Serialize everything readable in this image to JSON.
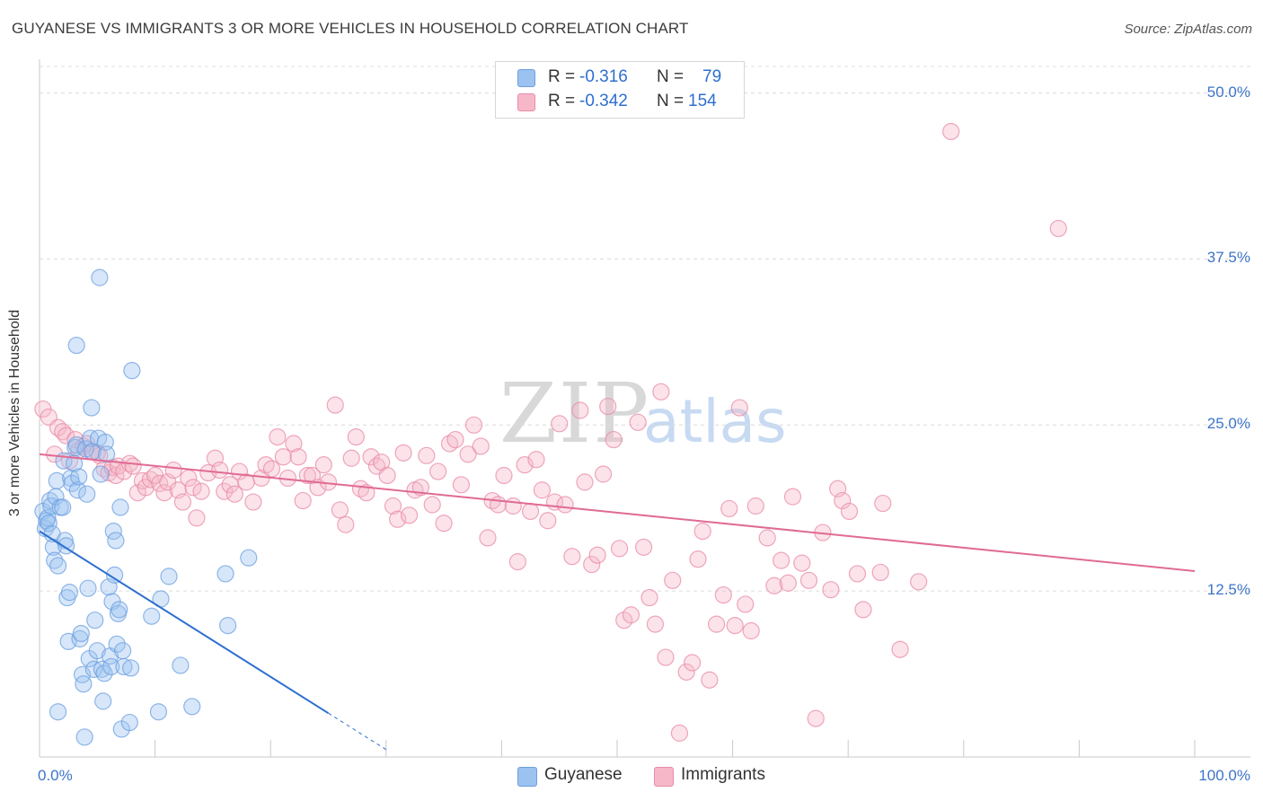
{
  "title": "GUYANESE VS IMMIGRANTS 3 OR MORE VEHICLES IN HOUSEHOLD CORRELATION CHART",
  "source": "Source: ZipAtlas.com",
  "watermark": "ZIPatlas",
  "legend": {
    "rows": [
      {
        "r_label": "R =",
        "r_value": "-0.316",
        "n_label": "N =",
        "n_value": "79",
        "color": "#9cc2f0",
        "border": "#6c9fe0"
      },
      {
        "r_label": "R =",
        "r_value": "-0.342",
        "n_label": "N =",
        "n_value": "154",
        "color": "#f6b8c9",
        "border": "#e98aa8"
      }
    ]
  },
  "bottom_legend": [
    "Guyanese",
    "Immigrants"
  ],
  "chart_data": {
    "type": "scatter",
    "title": "GUYANESE VS IMMIGRANTS 3 OR MORE VEHICLES IN HOUSEHOLD CORRELATION CHART",
    "xlabel": "",
    "ylabel": "3 or more Vehicles in Household",
    "xlim": [
      0,
      100
    ],
    "ylim": [
      0,
      52
    ],
    "x_tick_labels": [
      "0.0%",
      "100.0%"
    ],
    "y_ticks": [
      12.5,
      25.0,
      37.5,
      50.0
    ],
    "y_tick_labels": [
      "12.5%",
      "25.0%",
      "37.5%",
      "50.0%"
    ],
    "grid": true,
    "legend_position": "top-center",
    "colors": {
      "guyanese": "#6c9fe0",
      "guyanese_fill": "#9cc2f0",
      "guyanese_line": "#2d6fd0",
      "immigrants": "#e98aa8",
      "immigrants_fill": "#f6b8c9",
      "immigrants_line": "#e06a94"
    },
    "series": [
      {
        "name": "Guyanese",
        "trend": {
          "x0": 0,
          "y0": 17.0,
          "x1": 25,
          "y1": 3.3,
          "dash_to_x": 30
        },
        "points": [
          [
            0.3,
            18.5
          ],
          [
            0.5,
            17.2
          ],
          [
            0.6,
            17.8
          ],
          [
            0.7,
            18.0
          ],
          [
            0.8,
            17.6
          ],
          [
            0.9,
            19.3
          ],
          [
            1.0,
            18.9
          ],
          [
            1.1,
            16.8
          ],
          [
            1.2,
            15.8
          ],
          [
            1.3,
            14.8
          ],
          [
            1.4,
            19.6
          ],
          [
            1.5,
            20.8
          ],
          [
            1.6,
            14.4
          ],
          [
            1.8,
            18.8
          ],
          [
            2.0,
            18.8
          ],
          [
            2.1,
            22.3
          ],
          [
            2.2,
            16.3
          ],
          [
            2.3,
            15.9
          ],
          [
            2.4,
            12.0
          ],
          [
            2.5,
            8.7
          ],
          [
            2.6,
            12.4
          ],
          [
            2.7,
            21.0
          ],
          [
            2.8,
            20.6
          ],
          [
            3.0,
            22.1
          ],
          [
            3.1,
            23.3
          ],
          [
            3.2,
            23.5
          ],
          [
            3.3,
            20.1
          ],
          [
            3.4,
            21.1
          ],
          [
            3.5,
            8.9
          ],
          [
            3.6,
            9.3
          ],
          [
            3.7,
            6.2
          ],
          [
            3.8,
            5.5
          ],
          [
            3.9,
            1.5
          ],
          [
            4.0,
            23.2
          ],
          [
            4.1,
            19.8
          ],
          [
            4.2,
            12.7
          ],
          [
            4.3,
            7.4
          ],
          [
            4.4,
            24.0
          ],
          [
            4.5,
            26.3
          ],
          [
            4.6,
            23.0
          ],
          [
            4.7,
            6.6
          ],
          [
            4.8,
            10.3
          ],
          [
            5.0,
            8.0
          ],
          [
            5.1,
            24.0
          ],
          [
            5.2,
            36.1
          ],
          [
            5.3,
            21.3
          ],
          [
            5.4,
            6.6
          ],
          [
            5.5,
            4.2
          ],
          [
            5.6,
            6.3
          ],
          [
            5.7,
            23.7
          ],
          [
            5.8,
            22.8
          ],
          [
            6.0,
            12.8
          ],
          [
            6.1,
            7.6
          ],
          [
            6.2,
            6.8
          ],
          [
            6.3,
            11.7
          ],
          [
            6.4,
            17.0
          ],
          [
            6.5,
            13.7
          ],
          [
            6.6,
            16.3
          ],
          [
            6.7,
            8.5
          ],
          [
            6.8,
            10.8
          ],
          [
            6.9,
            11.1
          ],
          [
            7.0,
            18.8
          ],
          [
            7.1,
            2.1
          ],
          [
            7.2,
            8.0
          ],
          [
            7.3,
            6.8
          ],
          [
            7.8,
            2.6
          ],
          [
            7.9,
            6.7
          ],
          [
            8.0,
            29.1
          ],
          [
            9.7,
            10.6
          ],
          [
            10.3,
            3.4
          ],
          [
            10.5,
            11.9
          ],
          [
            11.2,
            13.6
          ],
          [
            12.2,
            6.9
          ],
          [
            13.2,
            3.8
          ],
          [
            16.1,
            13.8
          ],
          [
            16.3,
            9.9
          ],
          [
            18.1,
            15.0
          ],
          [
            1.6,
            3.4
          ],
          [
            3.2,
            31.0
          ]
        ]
      },
      {
        "name": "Immigrants",
        "trend": {
          "x0": 0,
          "y0": 22.8,
          "x1": 100,
          "y1": 14.0
        },
        "points": [
          [
            0.3,
            26.2
          ],
          [
            0.8,
            25.6
          ],
          [
            1.3,
            22.8
          ],
          [
            1.6,
            24.8
          ],
          [
            2.0,
            24.5
          ],
          [
            2.3,
            24.2
          ],
          [
            2.6,
            22.3
          ],
          [
            3.1,
            23.9
          ],
          [
            3.4,
            23.1
          ],
          [
            3.8,
            23.4
          ],
          [
            4.1,
            23.6
          ],
          [
            4.5,
            23.0
          ],
          [
            5.0,
            22.9
          ],
          [
            5.2,
            22.7
          ],
          [
            5.6,
            21.7
          ],
          [
            6.0,
            21.4
          ],
          [
            6.3,
            21.8
          ],
          [
            6.6,
            21.2
          ],
          [
            6.8,
            21.9
          ],
          [
            7.3,
            21.5
          ],
          [
            7.8,
            22.1
          ],
          [
            8.1,
            21.9
          ],
          [
            8.5,
            19.9
          ],
          [
            8.9,
            20.8
          ],
          [
            9.2,
            20.3
          ],
          [
            9.6,
            20.9
          ],
          [
            10.0,
            21.2
          ],
          [
            10.4,
            20.6
          ],
          [
            10.8,
            19.9
          ],
          [
            11.1,
            20.7
          ],
          [
            11.6,
            21.6
          ],
          [
            12.0,
            20.1
          ],
          [
            12.4,
            19.2
          ],
          [
            12.9,
            21.0
          ],
          [
            13.3,
            20.3
          ],
          [
            13.6,
            18.0
          ],
          [
            14.0,
            20.0
          ],
          [
            14.6,
            21.4
          ],
          [
            15.2,
            22.5
          ],
          [
            15.6,
            21.6
          ],
          [
            16.0,
            20.0
          ],
          [
            16.5,
            20.5
          ],
          [
            16.9,
            19.8
          ],
          [
            17.3,
            21.5
          ],
          [
            17.9,
            20.7
          ],
          [
            18.5,
            19.2
          ],
          [
            19.2,
            21.0
          ],
          [
            19.6,
            22.0
          ],
          [
            20.1,
            21.7
          ],
          [
            20.6,
            24.1
          ],
          [
            21.1,
            22.6
          ],
          [
            21.5,
            21.0
          ],
          [
            22.0,
            23.6
          ],
          [
            22.4,
            22.6
          ],
          [
            22.8,
            19.3
          ],
          [
            23.2,
            21.2
          ],
          [
            23.6,
            21.2
          ],
          [
            24.1,
            20.3
          ],
          [
            24.6,
            22.0
          ],
          [
            25.0,
            20.7
          ],
          [
            25.6,
            26.5
          ],
          [
            26.0,
            18.6
          ],
          [
            26.5,
            17.5
          ],
          [
            27.0,
            22.5
          ],
          [
            27.4,
            24.1
          ],
          [
            27.8,
            20.2
          ],
          [
            28.3,
            19.9
          ],
          [
            28.7,
            22.6
          ],
          [
            29.2,
            21.9
          ],
          [
            29.6,
            22.2
          ],
          [
            30.1,
            21.2
          ],
          [
            30.6,
            18.9
          ],
          [
            31.0,
            17.9
          ],
          [
            31.5,
            22.9
          ],
          [
            32.0,
            18.2
          ],
          [
            32.5,
            20.1
          ],
          [
            33.0,
            20.3
          ],
          [
            33.5,
            22.7
          ],
          [
            34.0,
            19.0
          ],
          [
            34.5,
            21.5
          ],
          [
            35.0,
            17.6
          ],
          [
            35.5,
            23.6
          ],
          [
            36.0,
            23.9
          ],
          [
            36.5,
            20.5
          ],
          [
            37.1,
            22.8
          ],
          [
            37.6,
            25.0
          ],
          [
            38.2,
            23.4
          ],
          [
            38.8,
            16.5
          ],
          [
            39.2,
            19.3
          ],
          [
            39.7,
            19.0
          ],
          [
            40.2,
            21.2
          ],
          [
            41.0,
            18.9
          ],
          [
            41.4,
            14.7
          ],
          [
            42.0,
            22.0
          ],
          [
            42.5,
            18.5
          ],
          [
            43.0,
            22.4
          ],
          [
            43.5,
            20.1
          ],
          [
            44.0,
            17.8
          ],
          [
            44.6,
            19.2
          ],
          [
            45.0,
            25.1
          ],
          [
            45.5,
            19.0
          ],
          [
            46.1,
            15.1
          ],
          [
            46.8,
            26.1
          ],
          [
            47.2,
            20.7
          ],
          [
            47.8,
            14.5
          ],
          [
            48.3,
            15.2
          ],
          [
            48.8,
            21.3
          ],
          [
            49.2,
            26.4
          ],
          [
            49.7,
            23.9
          ],
          [
            50.2,
            15.7
          ],
          [
            50.6,
            10.3
          ],
          [
            51.2,
            10.7
          ],
          [
            51.8,
            25.2
          ],
          [
            52.3,
            15.8
          ],
          [
            52.8,
            12.0
          ],
          [
            53.3,
            10.0
          ],
          [
            53.8,
            27.5
          ],
          [
            54.2,
            7.5
          ],
          [
            54.8,
            13.3
          ],
          [
            55.4,
            1.8
          ],
          [
            56.0,
            6.4
          ],
          [
            56.5,
            7.1
          ],
          [
            57.0,
            14.9
          ],
          [
            57.4,
            17.0
          ],
          [
            58.0,
            5.8
          ],
          [
            58.6,
            10.0
          ],
          [
            59.2,
            12.2
          ],
          [
            59.7,
            18.7
          ],
          [
            60.2,
            9.9
          ],
          [
            60.6,
            26.3
          ],
          [
            61.1,
            11.5
          ],
          [
            61.6,
            9.5
          ],
          [
            62.0,
            18.9
          ],
          [
            63.0,
            16.5
          ],
          [
            63.6,
            12.9
          ],
          [
            64.2,
            14.8
          ],
          [
            64.8,
            13.1
          ],
          [
            65.2,
            19.6
          ],
          [
            66.0,
            14.6
          ],
          [
            66.6,
            13.3
          ],
          [
            67.2,
            2.9
          ],
          [
            67.8,
            16.9
          ],
          [
            68.5,
            12.6
          ],
          [
            69.1,
            20.2
          ],
          [
            69.5,
            19.3
          ],
          [
            70.1,
            18.5
          ],
          [
            70.8,
            13.8
          ],
          [
            71.3,
            11.1
          ],
          [
            72.8,
            13.9
          ],
          [
            73.0,
            19.1
          ],
          [
            74.5,
            8.1
          ],
          [
            76.1,
            13.2
          ],
          [
            78.9,
            47.1
          ],
          [
            88.2,
            39.8
          ]
        ]
      }
    ]
  }
}
